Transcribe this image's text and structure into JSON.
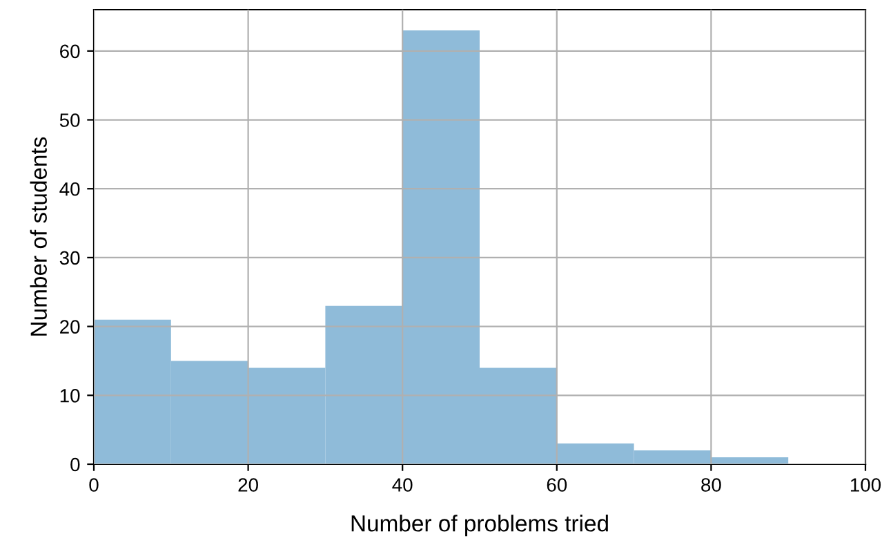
{
  "chart_data": {
    "type": "histogram",
    "xlabel": "Number of problems tried",
    "ylabel": "Number of students",
    "bins": [
      0,
      10,
      20,
      30,
      40,
      50,
      60,
      70,
      80,
      90
    ],
    "values": [
      21,
      15,
      14,
      23,
      63,
      14,
      3,
      2,
      1
    ],
    "color": "#8fbbd9",
    "xlim": [
      0,
      100
    ],
    "xticks": [
      0,
      20,
      40,
      60,
      80,
      100
    ],
    "ylim": [
      0,
      66
    ],
    "yticks": [
      0,
      10,
      20,
      30,
      40,
      50,
      60
    ],
    "grid": true
  }
}
